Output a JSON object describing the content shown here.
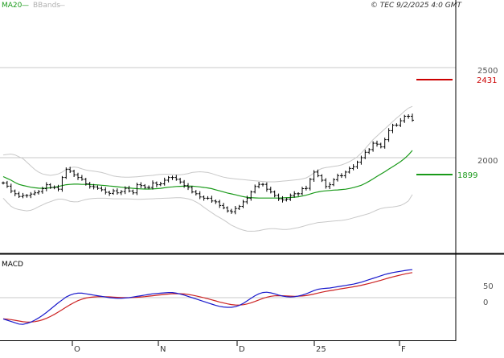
{
  "header": {
    "ma_label": "MA20",
    "ma_dash": "—",
    "bb_label": "BBands",
    "bb_dash": "—",
    "copyright": "© TEC 9/2/2025 4:0 GMT"
  },
  "colors": {
    "background": "#ffffff",
    "grid": "#c8c8c8",
    "frame": "#000000",
    "candle": "#000000",
    "ma": "#1a9a1a",
    "bbands": "#c8c8c8",
    "resistance": "#cc0000",
    "support": "#1a9a1a",
    "macd": "#1a1acc",
    "signal": "#cc2222",
    "axis_text": "#555555",
    "title_text": "#333333"
  },
  "chart_data": [
    {
      "type": "candlestick",
      "title": "",
      "y_ticks": [
        "2500",
        "2000"
      ],
      "x_ticks": [
        "O",
        "N",
        "D",
        "25",
        "F"
      ],
      "ylim": [
        1580,
        2630
      ],
      "grid": true,
      "indicators": [
        "MA20",
        "BBands"
      ],
      "levels": [
        {
          "name": "resistance",
          "value": 2431,
          "label": "2431"
        },
        {
          "name": "support",
          "value": 1899,
          "label": "1899"
        }
      ],
      "close": [
        1860,
        1842,
        1815,
        1800,
        1785,
        1790,
        1790,
        1798,
        1805,
        1812,
        1828,
        1850,
        1835,
        1835,
        1825,
        1890,
        1935,
        1925,
        1905,
        1890,
        1880,
        1855,
        1840,
        1838,
        1830,
        1822,
        1808,
        1802,
        1816,
        1805,
        1812,
        1830,
        1815,
        1805,
        1850,
        1845,
        1835,
        1835,
        1860,
        1850,
        1855,
        1875,
        1890,
        1890,
        1880,
        1865,
        1845,
        1835,
        1810,
        1800,
        1782,
        1775,
        1775,
        1760,
        1755,
        1735,
        1722,
        1705,
        1700,
        1718,
        1730,
        1755,
        1775,
        1810,
        1840,
        1852,
        1852,
        1825,
        1810,
        1790,
        1772,
        1765,
        1770,
        1790,
        1800,
        1800,
        1828,
        1830,
        1880,
        1920,
        1900,
        1875,
        1840,
        1850,
        1878,
        1900,
        1900,
        1920,
        1940,
        1950,
        1975,
        2000,
        2030,
        2045,
        2080,
        2075,
        2060,
        2100,
        2150,
        2180,
        2180,
        2205,
        2230,
        2230,
        2208
      ],
      "ma20": [
        1895,
        1885,
        1875,
        1862,
        1852,
        1846,
        1841,
        1836,
        1833,
        1831,
        1830,
        1831,
        1833,
        1836,
        1840,
        1845,
        1850,
        1852,
        1853,
        1853,
        1852,
        1852,
        1851,
        1850,
        1849,
        1847,
        1845,
        1843,
        1841,
        1839,
        1836,
        1834,
        1832,
        1830,
        1828,
        1827,
        1826,
        1826,
        1827,
        1828,
        1830,
        1833,
        1836,
        1838,
        1840,
        1841,
        1842,
        1842,
        1842,
        1840,
        1838,
        1835,
        1832,
        1828,
        1822,
        1816,
        1810,
        1804,
        1799,
        1794,
        1789,
        1784,
        1780,
        1778,
        1777,
        1776,
        1776,
        1776,
        1776,
        1776,
        1776,
        1777,
        1778,
        1779,
        1781,
        1783,
        1787,
        1792,
        1798,
        1805,
        1810,
        1814,
        1816,
        1818,
        1820,
        1821,
        1823,
        1825,
        1829,
        1834,
        1840,
        1847,
        1857,
        1869,
        1882,
        1896,
        1909,
        1922,
        1936,
        1950,
        1964,
        1978,
        1995,
        2015,
        2040
      ],
      "bb_upper": [
        2015,
        2018,
        2020,
        2015,
        2005,
        1995,
        1975,
        1955,
        1935,
        1920,
        1910,
        1905,
        1902,
        1905,
        1910,
        1920,
        1935,
        1945,
        1948,
        1945,
        1938,
        1932,
        1928,
        1925,
        1922,
        1918,
        1912,
        1905,
        1898,
        1895,
        1893,
        1892,
        1892,
        1893,
        1894,
        1896,
        1898,
        1900,
        1902,
        1905,
        1907,
        1908,
        1908,
        1907,
        1905,
        1905,
        1908,
        1912,
        1918,
        1920,
        1922,
        1920,
        1918,
        1912,
        1905,
        1898,
        1892,
        1888,
        1885,
        1882,
        1880,
        1878,
        1876,
        1874,
        1872,
        1870,
        1868,
        1866,
        1866,
        1866,
        1868,
        1870,
        1872,
        1874,
        1876,
        1878,
        1882,
        1888,
        1900,
        1915,
        1930,
        1940,
        1945,
        1948,
        1952,
        1955,
        1960,
        1968,
        1978,
        1990,
        2005,
        2025,
        2050,
        2075,
        2100,
        2120,
        2140,
        2160,
        2180,
        2200,
        2220,
        2238,
        2258,
        2275,
        2285
      ],
      "bb_lower": [
        1775,
        1752,
        1730,
        1718,
        1712,
        1708,
        1705,
        1708,
        1716,
        1728,
        1738,
        1748,
        1756,
        1764,
        1770,
        1770,
        1765,
        1758,
        1755,
        1756,
        1762,
        1768,
        1772,
        1774,
        1775,
        1775,
        1775,
        1773,
        1772,
        1772,
        1772,
        1772,
        1771,
        1770,
        1769,
        1769,
        1770,
        1771,
        1772,
        1773,
        1774,
        1775,
        1776,
        1777,
        1778,
        1778,
        1776,
        1772,
        1765,
        1755,
        1742,
        1725,
        1710,
        1695,
        1680,
        1668,
        1655,
        1640,
        1625,
        1615,
        1605,
        1598,
        1593,
        1592,
        1593,
        1595,
        1600,
        1604,
        1606,
        1606,
        1604,
        1602,
        1602,
        1604,
        1608,
        1612,
        1618,
        1624,
        1630,
        1635,
        1640,
        1642,
        1644,
        1646,
        1648,
        1650,
        1652,
        1655,
        1660,
        1666,
        1672,
        1678,
        1684,
        1690,
        1700,
        1710,
        1718,
        1722,
        1725,
        1727,
        1730,
        1735,
        1745,
        1760,
        1795
      ]
    },
    {
      "type": "line",
      "title": "MACD",
      "y_ticks": [
        "50",
        "0"
      ],
      "grid": true,
      "ylim": [
        -90,
        110
      ],
      "series": [
        {
          "name": "MACD",
          "values": [
            -66,
            -70,
            -74,
            -78,
            -82,
            -83,
            -80,
            -76,
            -70,
            -63,
            -55,
            -46,
            -36,
            -26,
            -16,
            -7,
            2,
            8,
            12,
            14,
            14,
            12,
            10,
            8,
            6,
            4,
            2,
            0,
            -1,
            -2,
            -2,
            -1,
            0,
            2,
            4,
            6,
            8,
            10,
            12,
            13,
            14,
            15,
            16,
            16,
            14,
            11,
            8,
            4,
            0,
            -4,
            -8,
            -12,
            -16,
            -20,
            -24,
            -27,
            -29,
            -30,
            -30,
            -28,
            -24,
            -18,
            -10,
            -2,
            6,
            12,
            16,
            17,
            15,
            12,
            8,
            5,
            3,
            2,
            3,
            5,
            8,
            12,
            17,
            22,
            26,
            28,
            29,
            30,
            32,
            34,
            36,
            38,
            40,
            42,
            45,
            48,
            52,
            56,
            60,
            64,
            68,
            72,
            75,
            78,
            80,
            82,
            84,
            86,
            87
          ]
        }
      ]
    }
  ]
}
